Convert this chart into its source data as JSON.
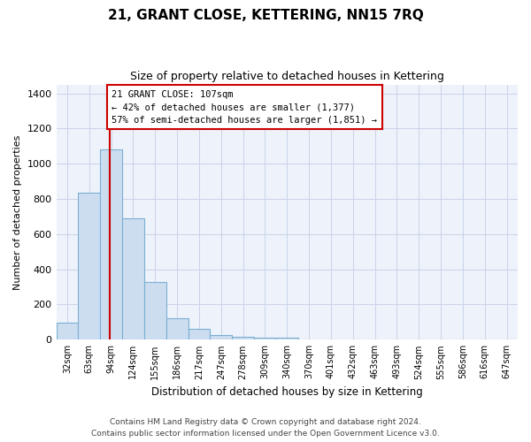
{
  "title": "21, GRANT CLOSE, KETTERING, NN15 7RQ",
  "subtitle": "Size of property relative to detached houses in Kettering",
  "xlabel": "Distribution of detached houses by size in Kettering",
  "ylabel": "Number of detached properties",
  "bar_color": "#ccddf0",
  "bar_edge_color": "#7bafd4",
  "grid_color": "#c8d4e8",
  "background_color": "#eef2fa",
  "annotation_box_color": "#cc0000",
  "vline_color": "#cc0000",
  "bin_labels": [
    "32sqm",
    "63sqm",
    "94sqm",
    "124sqm",
    "155sqm",
    "186sqm",
    "217sqm",
    "247sqm",
    "278sqm",
    "309sqm",
    "340sqm",
    "370sqm",
    "401sqm",
    "432sqm",
    "463sqm",
    "493sqm",
    "524sqm",
    "555sqm",
    "586sqm",
    "616sqm",
    "647sqm"
  ],
  "bar_heights": [
    95,
    835,
    1080,
    690,
    330,
    120,
    60,
    28,
    18,
    10,
    10,
    0,
    0,
    0,
    0,
    0,
    0,
    0,
    0,
    0,
    0
  ],
  "property_label": "21 GRANT CLOSE: 107sqm",
  "annotation_line1": "← 42% of detached houses are smaller (1,377)",
  "annotation_line2": "57% of semi-detached houses are larger (1,851) →",
  "ylim": [
    0,
    1450
  ],
  "yticks": [
    0,
    200,
    400,
    600,
    800,
    1000,
    1200,
    1400
  ],
  "footer1": "Contains HM Land Registry data © Crown copyright and database right 2024.",
  "footer2": "Contains public sector information licensed under the Open Government Licence v3.0."
}
